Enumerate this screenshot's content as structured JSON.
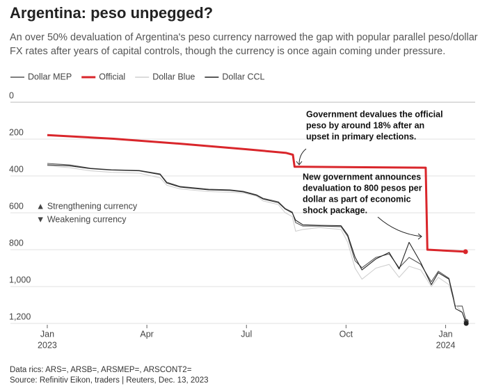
{
  "chart_data": {
    "type": "line",
    "title": "Argentina: peso unpegged?",
    "subtitle": "An over 50% devaluation of Argentina's peso currency narrowed the gap with popular parallel peso/dollar FX rates after years of capital controls, though the currency is once again coming under pressure.",
    "x": [
      0,
      0.67,
      1.3,
      1.93,
      2.77,
      3.4,
      3.6,
      4.0,
      4.86,
      5.5,
      5.9,
      6.3,
      6.5,
      6.96,
      7.17,
      7.38,
      7.48,
      7.7,
      8.2,
      8.85,
      9.05,
      9.27,
      9.48,
      9.9,
      10.3,
      10.6,
      10.9,
      11.25,
      11.57,
      11.78,
      12.1,
      12.3,
      12.5,
      12.62
    ],
    "series": [
      {
        "name": "Dollar MEP",
        "color": "#555555",
        "values": [
          332,
          340,
          358,
          366,
          370,
          389,
          434,
          457,
          472,
          475,
          483,
          502,
          521,
          540,
          577,
          596,
          653,
          672,
          672,
          675,
          728,
          860,
          898,
          842,
          823,
          898,
          842,
          879,
          974,
          917,
          955,
          1106,
          1106,
          1189
        ]
      },
      {
        "name": "Official",
        "color": "#d9262b",
        "x": [
          0,
          2,
          4,
          6,
          7.2,
          7.4,
          7.45,
          7.6,
          11.4,
          11.45,
          12.6
        ],
        "values": [
          178,
          198,
          225,
          255,
          275,
          285,
          350,
          350,
          355,
          800,
          811
        ]
      },
      {
        "name": "Dollar Blue",
        "color": "#cfcfcf",
        "values": [
          345,
          355,
          372,
          380,
          385,
          410,
          450,
          470,
          485,
          488,
          492,
          510,
          535,
          555,
          600,
          620,
          700,
          690,
          680,
          690,
          760,
          900,
          960,
          900,
          880,
          950,
          890,
          910,
          1000,
          950,
          990,
          1100,
          1140,
          1210
        ]
      },
      {
        "name": "Dollar CCL",
        "color": "#222222",
        "values": [
          340,
          345,
          360,
          368,
          372,
          392,
          438,
          460,
          475,
          478,
          486,
          505,
          525,
          545,
          580,
          600,
          640,
          665,
          668,
          670,
          720,
          840,
          910,
          850,
          815,
          905,
          760,
          870,
          990,
          925,
          960,
          1120,
          1140,
          1200
        ]
      }
    ],
    "xlim": [
      -1.11,
      12.89
    ],
    "xticks": [
      {
        "value": 0,
        "label": "Jan"
      },
      {
        "value": 3,
        "label": "Apr"
      },
      {
        "value": 6,
        "label": "Jul"
      },
      {
        "value": 9,
        "label": "Oct"
      },
      {
        "value": 12,
        "label": "Jan"
      }
    ],
    "x_year_labels": [
      {
        "value": 0,
        "label": "2023"
      },
      {
        "value": 12,
        "label": "2024"
      }
    ],
    "ylim": [
      0,
      1200
    ],
    "y_inverted": true,
    "yticks": [
      0,
      200,
      400,
      600,
      800,
      {
        "value": 1000,
        "label": "1,000"
      },
      {
        "value": 1200,
        "label": "1,200"
      }
    ],
    "grid": true,
    "legend": "top-left",
    "direction_notes": [
      "▲ Strengthening currency",
      "▼ Weakening currency"
    ],
    "annotations": [
      [
        "Government devalues the official",
        "peso by around 18% after an",
        "upset in primary elections."
      ],
      [
        "New government announces",
        "devaluation to 800 pesos per",
        "dollar as part of economic",
        "shock package."
      ]
    ],
    "footnotes": [
      "Data rics: ARS=, ARSB=, ARSMEP=, ARSCONT2=",
      "Source: Refinitiv Eikon, traders | Reuters, Dec. 13, 2023"
    ]
  }
}
